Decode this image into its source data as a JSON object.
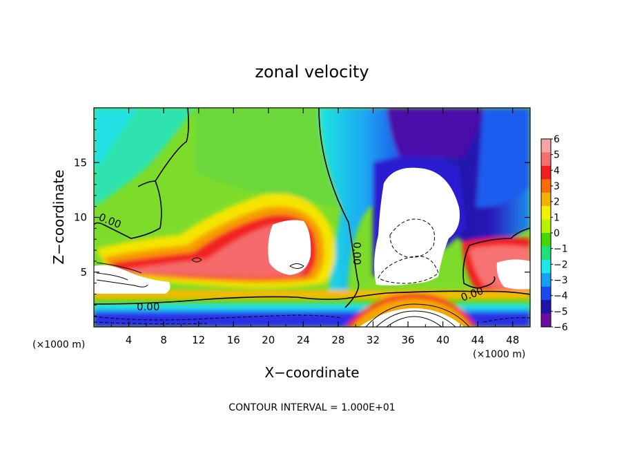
{
  "chart_data": {
    "type": "heatmap",
    "title": "zonal velocity",
    "xlabel": "X−coordinate",
    "ylabel": "Z−coordinate",
    "x_unit_label": "(×1000 m)",
    "y_unit_label": "(×1000 m)",
    "xlim": [
      0,
      50
    ],
    "ylim": [
      0,
      20
    ],
    "x_ticks": [
      4,
      8,
      12,
      16,
      20,
      24,
      28,
      32,
      36,
      40,
      44,
      48
    ],
    "y_ticks": [
      5,
      10,
      15
    ],
    "colorbar": {
      "levels": [
        6,
        5,
        4,
        3,
        2,
        1,
        0,
        -1,
        -2,
        -3,
        -4,
        -5,
        -6
      ],
      "tick_labels": [
        "6",
        "5",
        "4",
        "3",
        "2",
        "1",
        "0",
        "−1",
        "−2",
        "−3",
        "−4",
        "−5",
        "−6"
      ],
      "colors": [
        "#f4a6a6",
        "#f77070",
        "#f21d1d",
        "#f86d05",
        "#f2b400",
        "#f4f100",
        "#b8f200",
        "#44d800",
        "#1ee07c",
        "#1de7e8",
        "#169ff5",
        "#1c49f0",
        "#1f13a8",
        "#6b0fa2"
      ]
    },
    "contour_labels": [
      "0.00",
      "0.00",
      "0.00",
      "0.00"
    ],
    "footer": "CONTOUR INTERVAL = 1.000E+01"
  }
}
